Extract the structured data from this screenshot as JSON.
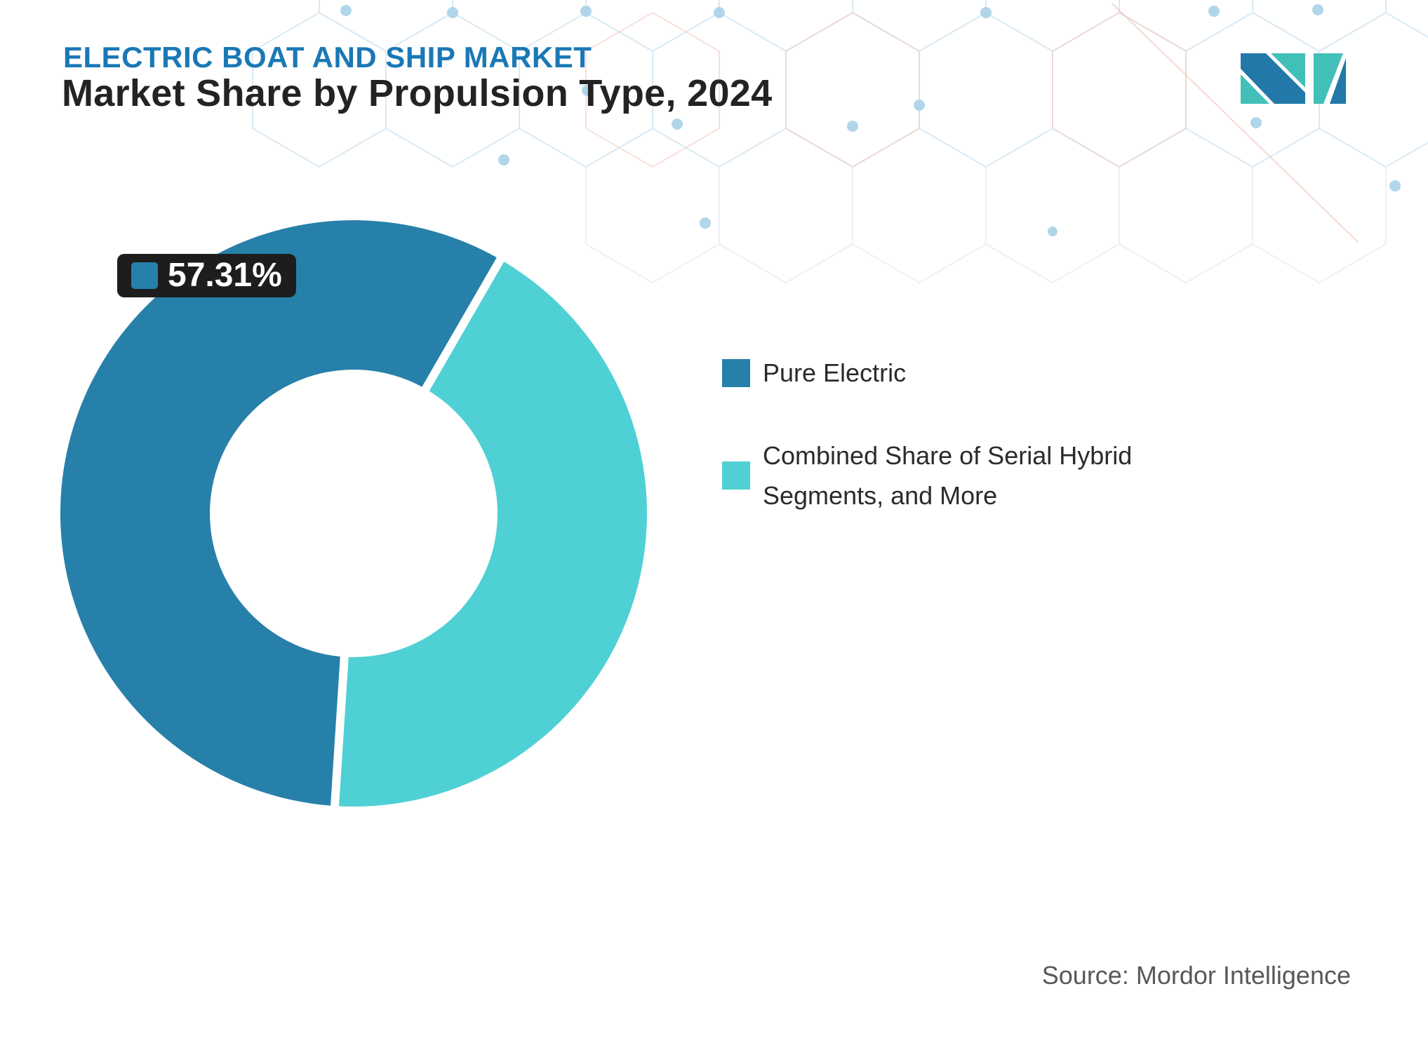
{
  "header": {
    "kicker": "ELECTRIC BOAT AND SHIP MARKET",
    "title": "Market Share by Propulsion Type, 2024"
  },
  "logo": {
    "name": "Mordor Intelligence",
    "blue": "#2278a8",
    "teal": "#43bfb9"
  },
  "chart_data": {
    "type": "pie",
    "subtype": "donut",
    "title": "Market Share by Propulsion Type, 2024",
    "categories": [
      "Pure Electric",
      "Combined Share of Serial Hybrid Segments, and More"
    ],
    "values": [
      57.31,
      42.69
    ],
    "colors": [
      "#2780a9",
      "#4fd0d4"
    ],
    "rotation_deg": 183.7,
    "inner_radius_ratio": 0.49,
    "data_labels": [
      {
        "series": "Pure Electric",
        "text": "57.31%"
      }
    ],
    "legend_position": "right"
  },
  "source": {
    "text": "Source: Mordor Intelligence"
  },
  "colors": {
    "kicker_text": "#1a78b6",
    "title_text": "#232323",
    "legend_text": "#2b2b2b",
    "source_text": "#57585a",
    "badge_bg": "#1d1d1d"
  }
}
